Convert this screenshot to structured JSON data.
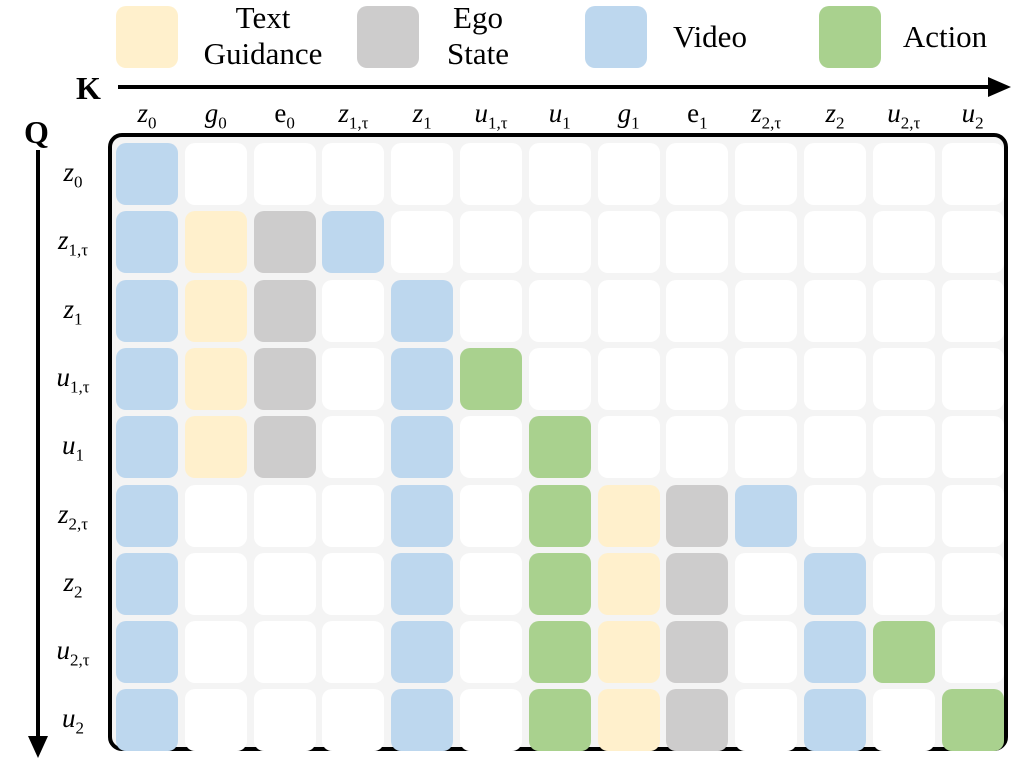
{
  "legend": [
    {
      "id": "text",
      "lines": [
        "Text",
        "Guidance"
      ],
      "color": "#FFF0CC"
    },
    {
      "id": "ego",
      "lines": [
        "Ego",
        "State"
      ],
      "color": "#CDCCCC"
    },
    {
      "id": "video",
      "lines": [
        "Video"
      ],
      "color": "#BDD7EE"
    },
    {
      "id": "action",
      "lines": [
        "Action"
      ],
      "color": "#A9D18E"
    }
  ],
  "axes": {
    "k_label": "K",
    "q_label": "Q"
  },
  "columns": [
    {
      "base": "z",
      "sub": "0"
    },
    {
      "base": "g",
      "sub": "0"
    },
    {
      "base": "e",
      "sub": "0",
      "upright": true
    },
    {
      "base": "z",
      "sub": "1,τ"
    },
    {
      "base": "z",
      "sub": "1"
    },
    {
      "base": "u",
      "sub": "1,τ"
    },
    {
      "base": "u",
      "sub": "1"
    },
    {
      "base": "g",
      "sub": "1"
    },
    {
      "base": "e",
      "sub": "1",
      "upright": true
    },
    {
      "base": "z",
      "sub": "2,τ"
    },
    {
      "base": "z",
      "sub": "2"
    },
    {
      "base": "u",
      "sub": "2,τ"
    },
    {
      "base": "u",
      "sub": "2"
    }
  ],
  "rows": [
    {
      "base": "z",
      "sub": "0"
    },
    {
      "base": "z",
      "sub": "1,τ"
    },
    {
      "base": "z",
      "sub": "1"
    },
    {
      "base": "u",
      "sub": "1,τ"
    },
    {
      "base": "u",
      "sub": "1"
    },
    {
      "base": "z",
      "sub": "2,τ"
    },
    {
      "base": "z",
      "sub": "2"
    },
    {
      "base": "u",
      "sub": "2,τ"
    },
    {
      "base": "u",
      "sub": "2"
    }
  ],
  "matrix": [
    "V............",
    "VTEV.........",
    "VTE.V........",
    "VTE.VA.......",
    "VTE.V.A......",
    "V...V.ATEV...",
    "V...V.ATE.V..",
    "V...V.ATE.VA.",
    "V...V.ATE.V.A"
  ],
  "matrix_key": {
    "V": "#BDD7EE",
    "T": "#FFF0CC",
    "E": "#CDCCCC",
    "A": "#A9D18E",
    ".": "#ffffff"
  }
}
